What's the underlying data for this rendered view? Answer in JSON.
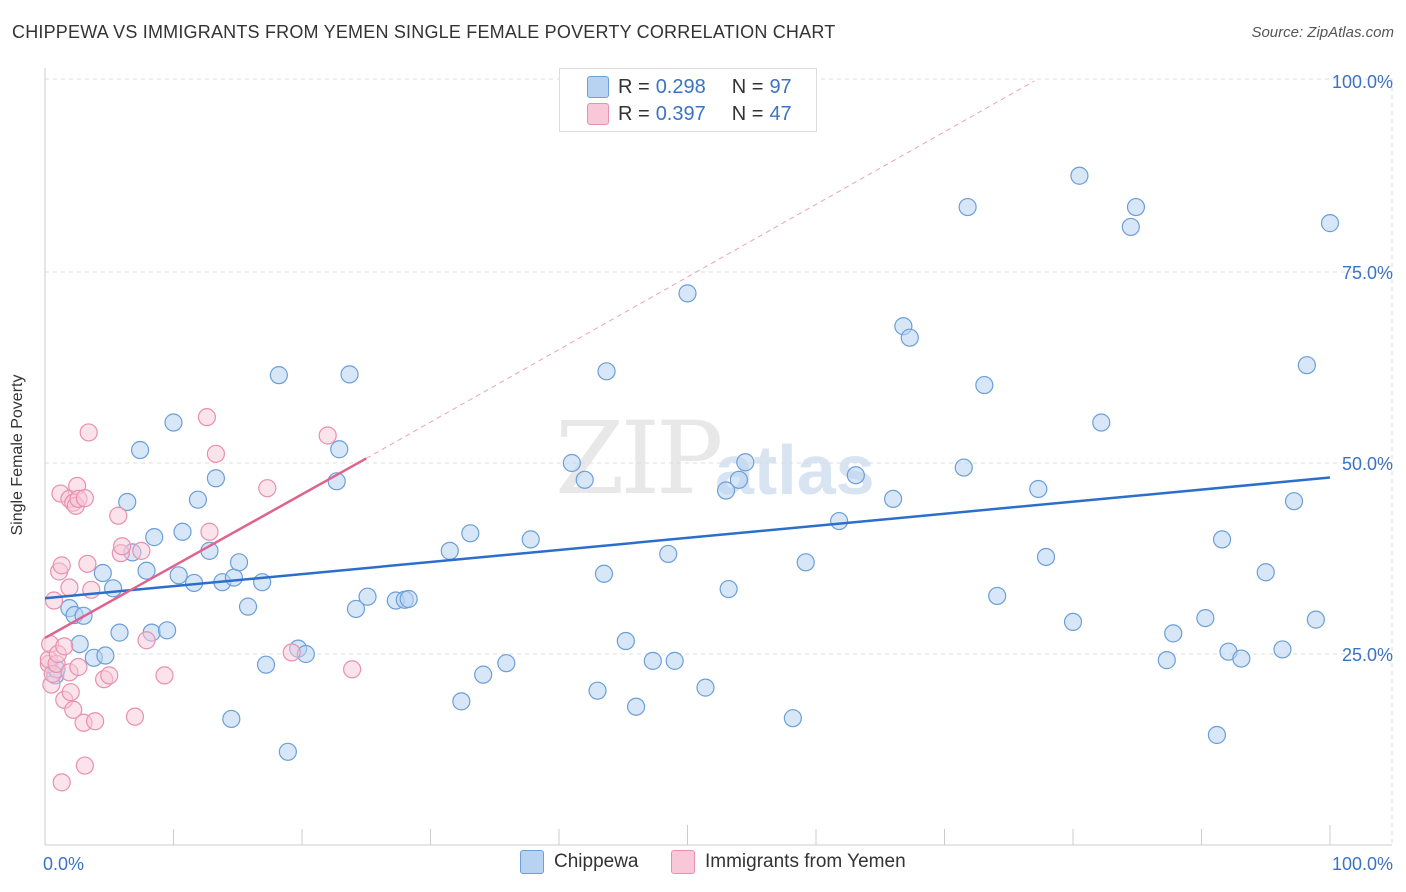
{
  "title": "CHIPPEWA VS IMMIGRANTS FROM YEMEN SINGLE FEMALE POVERTY CORRELATION CHART",
  "source": "Source: ZipAtlas.com",
  "watermark": {
    "zip": "ZIP",
    "atlas": "atlas"
  },
  "legend": {
    "r_label": "R =",
    "n_label": "N =",
    "series": [
      {
        "name": "Chippewa",
        "r": "0.298",
        "n": "97",
        "fill": "#b8d3f2",
        "stroke": "#6b9fd8"
      },
      {
        "name": "Immigrants from Yemen",
        "r": "0.397",
        "n": "47",
        "fill": "#f8c8d8",
        "stroke": "#e890ad"
      }
    ]
  },
  "colors": {
    "blue_line": "#2b6fcb",
    "pink_line": "#e0628e",
    "blue_fill": "#b8d3f2",
    "blue_stroke": "#6b9fd8",
    "pink_fill": "#f8c8d8",
    "pink_stroke": "#e890ad",
    "tick_blue": "#3b73c4",
    "grid": "#dddddd"
  },
  "chart_data": {
    "type": "scatter",
    "title": "CHIPPEWA VS IMMIGRANTS FROM YEMEN SINGLE FEMALE POVERTY CORRELATION CHART",
    "xlabel": "",
    "ylabel": "Single Female Poverty",
    "xlim": [
      0,
      100
    ],
    "ylim": [
      0,
      100
    ],
    "x_tick_labels": [
      "0.0%",
      "100.0%"
    ],
    "y_tick_labels": [
      {
        "value": 25,
        "label": "25.0%"
      },
      {
        "value": 50,
        "label": "50.0%"
      },
      {
        "value": 75,
        "label": "75.0%"
      },
      {
        "value": 100,
        "label": "100.0%"
      }
    ],
    "series": [
      {
        "name": "Chippewa",
        "trend": {
          "x": [
            0,
            100
          ],
          "y": [
            32.3,
            48.1
          ]
        },
        "points": [
          [
            0.8,
            22.2
          ],
          [
            0.9,
            23.0
          ],
          [
            1.9,
            31.0
          ],
          [
            2.3,
            30.1
          ],
          [
            2.7,
            26.3
          ],
          [
            3.0,
            30.0
          ],
          [
            3.8,
            24.5
          ],
          [
            4.5,
            35.6
          ],
          [
            4.7,
            24.8
          ],
          [
            5.3,
            33.6
          ],
          [
            5.8,
            27.8
          ],
          [
            6.4,
            44.9
          ],
          [
            6.8,
            38.3
          ],
          [
            7.4,
            51.7
          ],
          [
            7.9,
            35.9
          ],
          [
            8.3,
            27.8
          ],
          [
            8.5,
            40.3
          ],
          [
            9.5,
            28.1
          ],
          [
            10.0,
            55.3
          ],
          [
            10.4,
            35.3
          ],
          [
            10.7,
            41.0
          ],
          [
            11.6,
            34.3
          ],
          [
            11.9,
            45.2
          ],
          [
            12.8,
            38.5
          ],
          [
            13.3,
            48.0
          ],
          [
            13.8,
            34.4
          ],
          [
            14.5,
            16.5
          ],
          [
            14.7,
            35.0
          ],
          [
            15.1,
            37.0
          ],
          [
            15.8,
            31.2
          ],
          [
            16.9,
            34.4
          ],
          [
            17.2,
            23.6
          ],
          [
            18.2,
            61.5
          ],
          [
            18.9,
            12.2
          ],
          [
            19.7,
            25.7
          ],
          [
            20.3,
            25.0
          ],
          [
            22.7,
            47.6
          ],
          [
            22.9,
            51.8
          ],
          [
            23.7,
            61.6
          ],
          [
            24.2,
            30.9
          ],
          [
            25.1,
            32.5
          ],
          [
            27.3,
            32.0
          ],
          [
            28.0,
            32.1
          ],
          [
            28.3,
            32.2
          ],
          [
            31.5,
            38.5
          ],
          [
            32.4,
            18.8
          ],
          [
            33.1,
            40.8
          ],
          [
            34.1,
            22.3
          ],
          [
            35.9,
            23.8
          ],
          [
            37.8,
            40.0
          ],
          [
            41.0,
            50.0
          ],
          [
            42.0,
            47.8
          ],
          [
            43.0,
            20.2
          ],
          [
            43.5,
            35.5
          ],
          [
            43.7,
            62.0
          ],
          [
            45.2,
            26.7
          ],
          [
            46.0,
            18.1
          ],
          [
            47.3,
            24.1
          ],
          [
            48.5,
            38.1
          ],
          [
            49.0,
            24.1
          ],
          [
            50.0,
            72.2
          ],
          [
            51.4,
            20.6
          ],
          [
            53.0,
            46.4
          ],
          [
            53.2,
            33.5
          ],
          [
            54.0,
            47.8
          ],
          [
            54.5,
            50.1
          ],
          [
            58.2,
            16.6
          ],
          [
            59.2,
            37.0
          ],
          [
            61.8,
            42.4
          ],
          [
            63.1,
            48.4
          ],
          [
            66.0,
            45.3
          ],
          [
            66.8,
            67.9
          ],
          [
            67.3,
            66.4
          ],
          [
            71.5,
            49.4
          ],
          [
            71.8,
            83.5
          ],
          [
            73.1,
            60.2
          ],
          [
            74.1,
            32.6
          ],
          [
            77.3,
            46.6
          ],
          [
            77.9,
            37.7
          ],
          [
            80.0,
            29.2
          ],
          [
            80.5,
            87.6
          ],
          [
            82.2,
            55.3
          ],
          [
            84.5,
            80.9
          ],
          [
            84.9,
            83.5
          ],
          [
            87.3,
            24.2
          ],
          [
            87.8,
            27.7
          ],
          [
            90.3,
            29.7
          ],
          [
            91.2,
            14.4
          ],
          [
            91.6,
            40.0
          ],
          [
            92.1,
            25.3
          ],
          [
            93.1,
            24.4
          ],
          [
            95.0,
            35.7
          ],
          [
            96.3,
            25.6
          ],
          [
            97.2,
            45.0
          ],
          [
            98.2,
            62.8
          ],
          [
            98.9,
            29.5
          ],
          [
            100.0,
            81.4
          ]
        ]
      },
      {
        "name": "Immigrants from Yemen",
        "trend": {
          "x": [
            0,
            25
          ],
          "y": [
            27.1,
            50.6
          ],
          "extended": {
            "x": [
              25,
              77
            ],
            "y": [
              50.6,
              100
            ]
          }
        },
        "points": [
          [
            0.3,
            23.7
          ],
          [
            0.3,
            24.3
          ],
          [
            0.4,
            26.3
          ],
          [
            0.5,
            21.0
          ],
          [
            0.6,
            22.4
          ],
          [
            0.7,
            32.0
          ],
          [
            0.9,
            23.7
          ],
          [
            1.0,
            25.0
          ],
          [
            1.1,
            35.8
          ],
          [
            1.2,
            46.0
          ],
          [
            1.3,
            8.2
          ],
          [
            1.3,
            36.6
          ],
          [
            1.5,
            26.0
          ],
          [
            1.5,
            19.0
          ],
          [
            1.9,
            22.6
          ],
          [
            1.9,
            33.7
          ],
          [
            1.9,
            45.3
          ],
          [
            2.0,
            20.0
          ],
          [
            2.2,
            17.7
          ],
          [
            2.2,
            44.8
          ],
          [
            2.4,
            44.4
          ],
          [
            2.5,
            47.0
          ],
          [
            2.6,
            45.3
          ],
          [
            2.6,
            23.3
          ],
          [
            3.0,
            16.0
          ],
          [
            3.1,
            45.4
          ],
          [
            3.1,
            10.4
          ],
          [
            3.3,
            36.8
          ],
          [
            3.4,
            54.0
          ],
          [
            3.6,
            33.4
          ],
          [
            3.9,
            16.2
          ],
          [
            4.6,
            21.7
          ],
          [
            5.0,
            22.2
          ],
          [
            5.7,
            43.1
          ],
          [
            5.9,
            38.2
          ],
          [
            6.0,
            39.1
          ],
          [
            7.0,
            16.8
          ],
          [
            7.5,
            38.5
          ],
          [
            7.9,
            26.8
          ],
          [
            9.3,
            22.2
          ],
          [
            12.6,
            56.0
          ],
          [
            12.8,
            41.0
          ],
          [
            13.3,
            51.2
          ],
          [
            17.3,
            46.7
          ],
          [
            19.2,
            25.2
          ],
          [
            22.0,
            53.6
          ],
          [
            23.9,
            23.0
          ]
        ]
      }
    ],
    "grid": true,
    "legend_position": "top-center"
  }
}
